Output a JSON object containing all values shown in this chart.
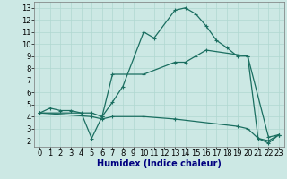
{
  "xlabel": "Humidex (Indice chaleur)",
  "ylabel": "",
  "background_color": "#cce8e4",
  "grid_color": "#b0d8d0",
  "line_color": "#1a6e60",
  "xlim": [
    -0.5,
    23.5
  ],
  "ylim": [
    1.5,
    13.5
  ],
  "xticks": [
    0,
    1,
    2,
    3,
    4,
    5,
    6,
    7,
    8,
    9,
    10,
    11,
    12,
    13,
    14,
    15,
    16,
    17,
    18,
    19,
    20,
    21,
    22,
    23
  ],
  "yticks": [
    2,
    3,
    4,
    5,
    6,
    7,
    8,
    9,
    10,
    11,
    12,
    13
  ],
  "line1_x": [
    0,
    1,
    2,
    3,
    4,
    5,
    6,
    7,
    8,
    10,
    11,
    13,
    14,
    15,
    16,
    17,
    18,
    19,
    20,
    22,
    23
  ],
  "line1_y": [
    4.3,
    4.7,
    4.5,
    4.5,
    4.3,
    2.2,
    4.0,
    5.2,
    6.5,
    11.0,
    10.5,
    12.8,
    13.0,
    12.5,
    11.5,
    10.3,
    9.7,
    9.0,
    9.0,
    2.3,
    2.5
  ],
  "line2_x": [
    0,
    5,
    6,
    7,
    10,
    13,
    14,
    15,
    16,
    20,
    21,
    22,
    23
  ],
  "line2_y": [
    4.3,
    4.3,
    4.0,
    7.5,
    7.5,
    8.5,
    8.5,
    9.0,
    9.5,
    9.0,
    2.2,
    1.8,
    2.5
  ],
  "line3_x": [
    0,
    5,
    6,
    7,
    10,
    13,
    19,
    20,
    21,
    22,
    23
  ],
  "line3_y": [
    4.3,
    4.0,
    3.8,
    4.0,
    4.0,
    3.8,
    3.2,
    3.0,
    2.2,
    2.0,
    2.5
  ],
  "xlabel_color": "#000080",
  "xlabel_fontsize": 7,
  "tick_fontsize": 6,
  "linewidth": 0.9,
  "markersize": 3.5
}
